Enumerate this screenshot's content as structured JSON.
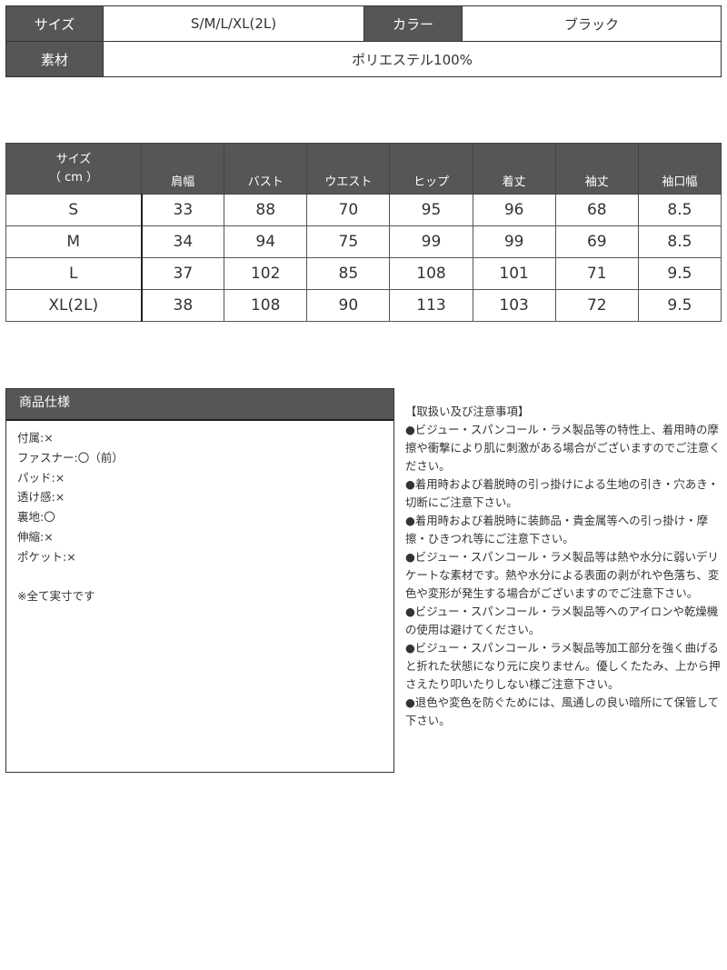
{
  "summary": {
    "size_label": "サイズ",
    "size_value": "S/M/L/XL(2L)",
    "color_label": "カラー",
    "color_value": "ブラック",
    "material_label": "素材",
    "material_value": "ポリエステル100%"
  },
  "size_table": {
    "corner_line1": "サイズ",
    "corner_line2": "（ cm ）",
    "columns": [
      "肩幅",
      "バスト",
      "ウエスト",
      "ヒップ",
      "着丈",
      "袖丈",
      "袖口幅"
    ],
    "rows": [
      {
        "size": "S",
        "values": [
          "33",
          "88",
          "70",
          "95",
          "96",
          "68",
          "8.5"
        ]
      },
      {
        "size": "M",
        "values": [
          "34",
          "94",
          "75",
          "99",
          "99",
          "69",
          "8.5"
        ]
      },
      {
        "size": "L",
        "values": [
          "37",
          "102",
          "85",
          "108",
          "101",
          "71",
          "9.5"
        ]
      },
      {
        "size": "XL(2L)",
        "values": [
          "38",
          "108",
          "90",
          "113",
          "103",
          "72",
          "9.5"
        ]
      }
    ]
  },
  "spec": {
    "title": "商品仕様",
    "items": [
      "付属:×",
      "ファスナー:〇（前）",
      "パッド:×",
      "透け感:×",
      "裏地:〇",
      "伸縮:×",
      "ポケット:×",
      "",
      "※全て実寸です"
    ]
  },
  "notes": {
    "title": "【取扱い及び注意事項】",
    "items": [
      "●ビジュー・スパンコール・ラメ製品等の特性上、着用時の摩擦や衝撃により肌に刺激がある場合がございますのでご注意ください。",
      "●着用時および着脱時の引っ掛けによる生地の引き・穴あき・切断にご注意下さい。",
      "●着用時および着脱時に装飾品・貴金属等への引っ掛け・摩擦・ひきつれ等にご注意下さい。",
      "●ビジュー・スパンコール・ラメ製品等は熱や水分に弱いデリケートな素材です。熱や水分による表面の剥がれや色落ち、変色や変形が発生する場合がございますのでご注意下さい。",
      "●ビジュー・スパンコール・ラメ製品等へのアイロンや乾燥機の使用は避けてください。",
      "●ビジュー・スパンコール・ラメ製品等加工部分を強く曲げると折れた状態になり元に戻りません。優しくたたみ、上から押さえたり叩いたりしない様ご注意下さい。",
      "●退色や変色を防ぐためには、風通しの良い暗所にて保管して下さい。"
    ]
  },
  "colors": {
    "header_bg": "#565656",
    "header_text": "#ffffff"
  }
}
